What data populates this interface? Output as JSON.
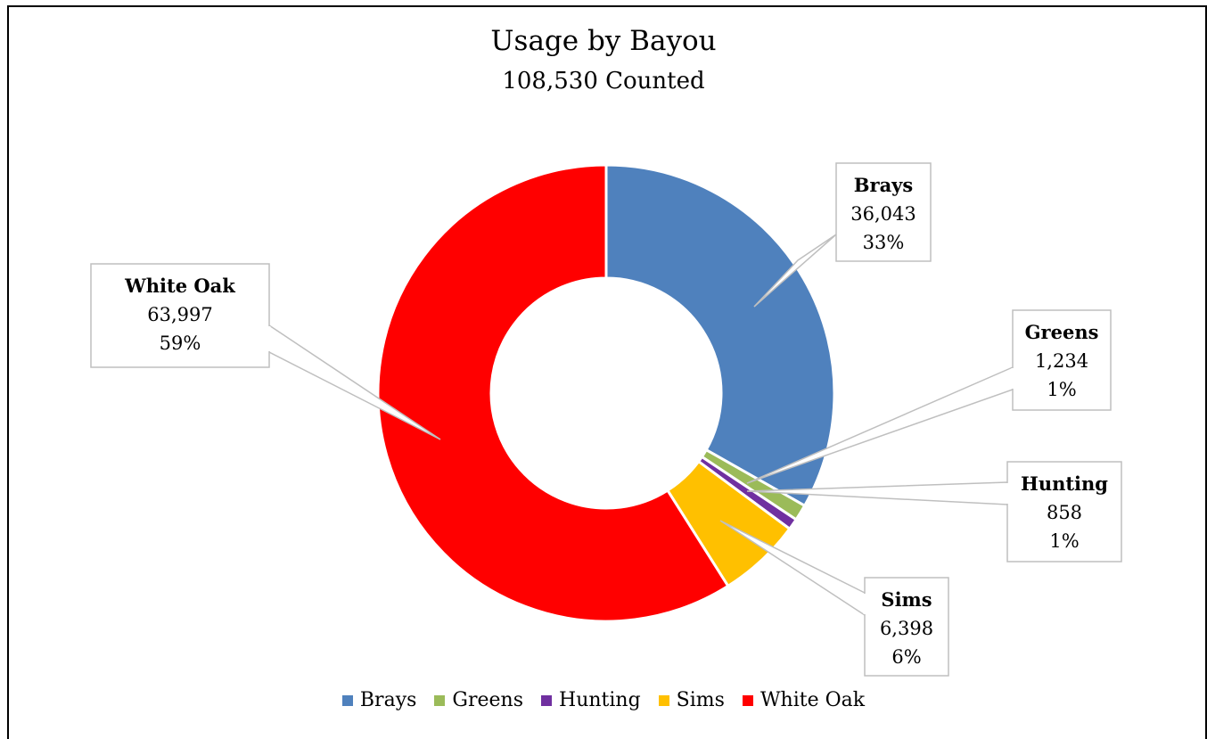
{
  "chart_data": {
    "type": "pie",
    "subtype": "doughnut",
    "title": "Usage by Bayou",
    "subtitle": "108,530 Counted",
    "legend_position": "bottom",
    "slices": [
      {
        "name": "Brays",
        "value": 36043,
        "value_label": "36,043",
        "percent_label": "33%",
        "color": "#4f81bd"
      },
      {
        "name": "Greens",
        "value": 1234,
        "value_label": "1,234",
        "percent_label": "1%",
        "color": "#9bbb59"
      },
      {
        "name": "Hunting",
        "value": 858,
        "value_label": "858",
        "percent_label": "1%",
        "color": "#7030a0"
      },
      {
        "name": "Sims",
        "value": 6398,
        "value_label": "6,398",
        "percent_label": "6%",
        "color": "#ffc000"
      },
      {
        "name": "White Oak",
        "value": 63997,
        "value_label": "63,997",
        "percent_label": "59%",
        "color": "#ff0000"
      }
    ]
  }
}
